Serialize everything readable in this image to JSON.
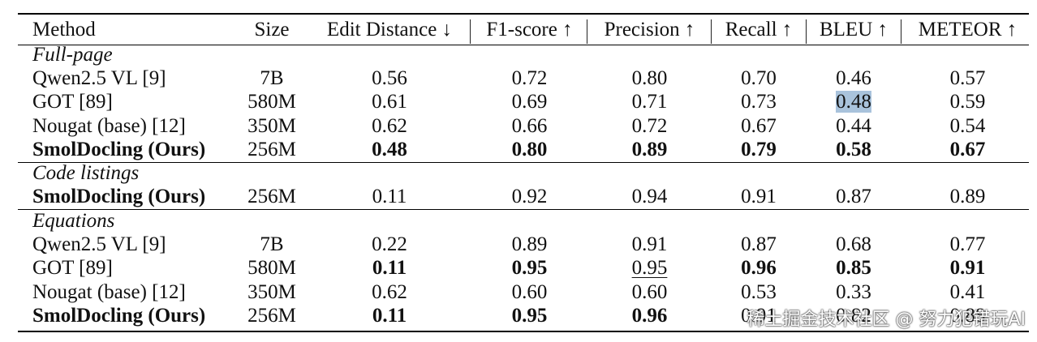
{
  "headers": [
    "Method",
    "Size",
    "Edit Distance ↓",
    "F1-score ↑",
    "Precision ↑",
    "Recall ↑",
    "BLEU ↑",
    "METEOR ↑"
  ],
  "sections": [
    {
      "title": "Full-page",
      "rows": [
        {
          "method": "Qwen2.5 VL [9]",
          "size": "7B",
          "values": [
            "0.56",
            "0.72",
            "0.80",
            "0.70",
            "0.46",
            "0.57"
          ],
          "bold_method": false
        },
        {
          "method": "GOT [89]",
          "size": "580M",
          "values": [
            "0.61",
            "0.69",
            "0.71",
            "0.73",
            "0.48",
            "0.59"
          ],
          "bold_method": false
        },
        {
          "method": "Nougat (base) [12]",
          "size": "350M",
          "values": [
            "0.62",
            "0.66",
            "0.72",
            "0.67",
            "0.44",
            "0.54"
          ],
          "bold_method": false
        },
        {
          "method": "SmolDocling (Ours)",
          "size": "256M",
          "values": [
            "0.48",
            "0.80",
            "0.89",
            "0.79",
            "0.58",
            "0.67"
          ],
          "bold_method": true
        }
      ]
    },
    {
      "title": "Code listings",
      "rows": [
        {
          "method": "SmolDocling (Ours)",
          "size": "256M",
          "values": [
            "0.11",
            "0.92",
            "0.94",
            "0.91",
            "0.87",
            "0.89"
          ],
          "bold_method": true
        }
      ]
    },
    {
      "title": "Equations",
      "rows": [
        {
          "method": "Qwen2.5 VL [9]",
          "size": "7B",
          "values": [
            "0.22",
            "0.89",
            "0.91",
            "0.87",
            "0.68",
            "0.77"
          ],
          "bold_method": false
        },
        {
          "method": "GOT [89]",
          "size": "580M",
          "values": [
            "0.11",
            "0.95",
            "0.95",
            "0.96",
            "0.85",
            "0.91"
          ],
          "bold_method": false
        },
        {
          "method": "Nougat (base) [12]",
          "size": "350M",
          "values": [
            "0.62",
            "0.60",
            "0.60",
            "0.53",
            "0.33",
            "0.41"
          ],
          "bold_method": false
        },
        {
          "method": "SmolDocling (Ours)",
          "size": "256M",
          "values": [
            "0.11",
            "0.95",
            "0.96",
            "0.91",
            "0.82",
            "0.88"
          ],
          "bold_method": true
        }
      ]
    }
  ],
  "watermark": "稀土掘金技术社区 @ 努力犯错玩AI"
}
